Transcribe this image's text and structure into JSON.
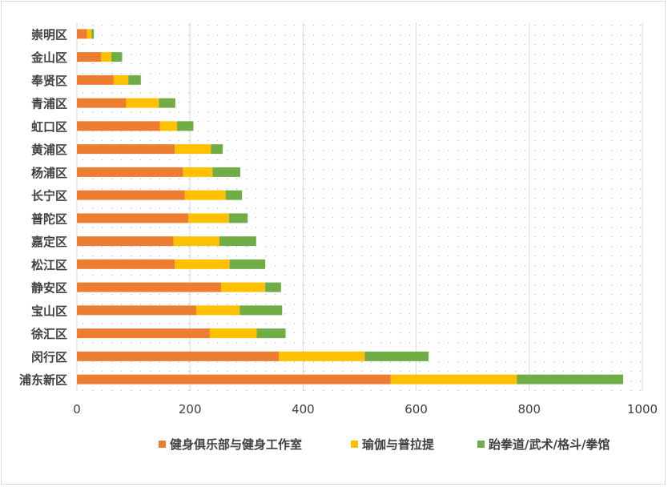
{
  "chart_data": {
    "type": "bar",
    "orientation": "horizontal",
    "stacked": true,
    "categories": [
      "崇明区",
      "金山区",
      "奉贤区",
      "青浦区",
      "虹口区",
      "黄浦区",
      "杨浦区",
      "长宁区",
      "普陀区",
      "嘉定区",
      "松江区",
      "静安区",
      "宝山区",
      "徐汇区",
      "闵行区",
      "浦东新区"
    ],
    "series": [
      {
        "name": "健身俱乐部与健身工作室",
        "color": "#ed7d31",
        "values": [
          18,
          43,
          65,
          87,
          147,
          173,
          188,
          191,
          197,
          171,
          173,
          255,
          211,
          235,
          357,
          555
        ]
      },
      {
        "name": "瑜伽与普拉提",
        "color": "#ffc000",
        "values": [
          8,
          18,
          26,
          58,
          30,
          64,
          52,
          72,
          72,
          81,
          97,
          78,
          77,
          83,
          152,
          223
        ]
      },
      {
        "name": "跆拳道/武术/格斗/拳馆",
        "color": "#70ad47",
        "values": [
          4,
          19,
          22,
          29,
          29,
          21,
          49,
          29,
          33,
          65,
          63,
          28,
          75,
          51,
          113,
          188
        ]
      }
    ],
    "x_ticks": [
      "0",
      "200",
      "400",
      "600",
      "800",
      "1000"
    ],
    "xlim": [
      0,
      1000
    ],
    "grid": true,
    "legend_position": "bottom",
    "title": "",
    "xlabel": "",
    "ylabel": ""
  }
}
